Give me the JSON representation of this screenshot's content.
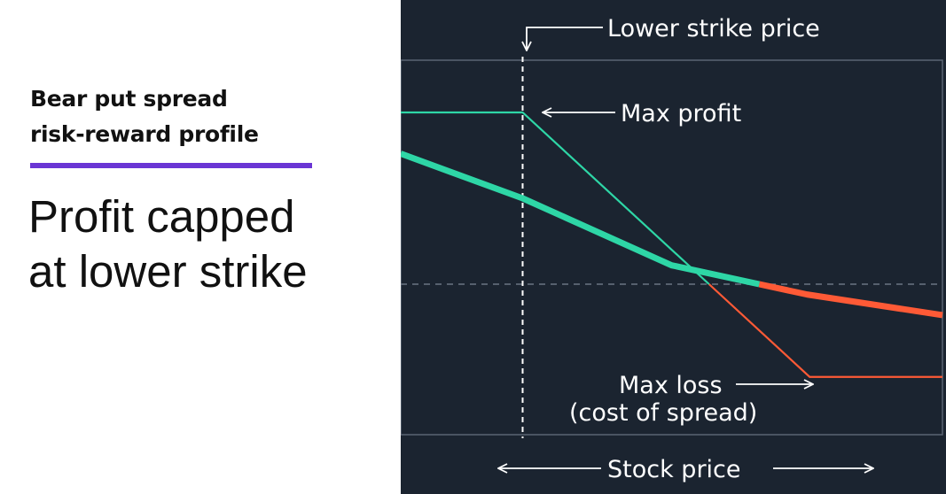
{
  "left": {
    "subtitle_line1": "Bear put spread",
    "subtitle_line2": "risk-reward profile",
    "headline_line1": "Profit capped",
    "headline_line2": "at lower strike",
    "accent_color": "#6a35d4"
  },
  "chart_data": {
    "type": "line",
    "xlabel": "Stock price",
    "ylabel": "",
    "title": "",
    "background": "#1b2430",
    "xlim": [
      0,
      100
    ],
    "ylim": [
      -100,
      100
    ],
    "series": [
      {
        "key": "spread",
        "x": [
          0,
          22.5,
          75.5,
          100
        ],
        "y": [
          100,
          100,
          -54,
          -54
        ],
        "profit_color": "#2ed6a6",
        "loss_color": "#ff5a36"
      },
      {
        "key": "stock",
        "x": [
          0,
          22.5,
          50,
          75,
          100
        ],
        "y": [
          76,
          50,
          11,
          -6,
          -18
        ],
        "profit_color": "#2ed6a6",
        "loss_color": "#ff5a36"
      }
    ],
    "zero_line": 0,
    "lower_strike": 22.5,
    "annotations": {
      "lower_strike": "Lower strike price",
      "max_profit": "Max profit",
      "max_loss_line1": "Max loss",
      "max_loss_line2": "(cost of spread)"
    }
  }
}
